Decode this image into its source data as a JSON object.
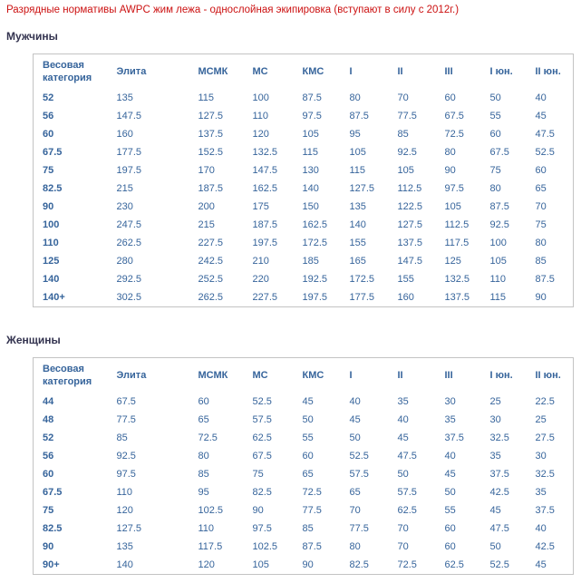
{
  "page_title": "Разрядные нормативы AWPC жим лежа - однослойная экипировка (вступают в силу с 2012г.)",
  "sections": [
    {
      "heading": "Мужчины",
      "table": {
        "header": [
          "Весовая категория",
          "Элита",
          "МСМК",
          "МС",
          "КМС",
          "I",
          "II",
          "III",
          "I юн.",
          "II юн."
        ],
        "rows": [
          [
            "52",
            "135",
            "115",
            "100",
            "87.5",
            "80",
            "70",
            "60",
            "50",
            "40"
          ],
          [
            "56",
            "147.5",
            "127.5",
            "110",
            "97.5",
            "87.5",
            "77.5",
            "67.5",
            "55",
            "45"
          ],
          [
            "60",
            "160",
            "137.5",
            "120",
            "105",
            "95",
            "85",
            "72.5",
            "60",
            "47.5"
          ],
          [
            "67.5",
            "177.5",
            "152.5",
            "132.5",
            "115",
            "105",
            "92.5",
            "80",
            "67.5",
            "52.5"
          ],
          [
            "75",
            "197.5",
            "170",
            "147.5",
            "130",
            "115",
            "105",
            "90",
            "75",
            "60"
          ],
          [
            "82.5",
            "215",
            "187.5",
            "162.5",
            "140",
            "127.5",
            "112.5",
            "97.5",
            "80",
            "65"
          ],
          [
            "90",
            "230",
            "200",
            "175",
            "150",
            "135",
            "122.5",
            "105",
            "87.5",
            "70"
          ],
          [
            "100",
            "247.5",
            "215",
            "187.5",
            "162.5",
            "140",
            "127.5",
            "112.5",
            "92.5",
            "75"
          ],
          [
            "110",
            "262.5",
            "227.5",
            "197.5",
            "172.5",
            "155",
            "137.5",
            "117.5",
            "100",
            "80"
          ],
          [
            "125",
            "280",
            "242.5",
            "210",
            "185",
            "165",
            "147.5",
            "125",
            "105",
            "85"
          ],
          [
            "140",
            "292.5",
            "252.5",
            "220",
            "192.5",
            "172.5",
            "155",
            "132.5",
            "110",
            "87.5"
          ],
          [
            "140+",
            "302.5",
            "262.5",
            "227.5",
            "197.5",
            "177.5",
            "160",
            "137.5",
            "115",
            "90"
          ]
        ]
      }
    },
    {
      "heading": "Женщины",
      "table": {
        "header": [
          "Весовая категория",
          "Элита",
          "МСМК",
          "МС",
          "КМС",
          "I",
          "II",
          "III",
          "I юн.",
          "II юн."
        ],
        "rows": [
          [
            "44",
            "67.5",
            "60",
            "52.5",
            "45",
            "40",
            "35",
            "30",
            "25",
            "22.5"
          ],
          [
            "48",
            "77.5",
            "65",
            "57.5",
            "50",
            "45",
            "40",
            "35",
            "30",
            "25"
          ],
          [
            "52",
            "85",
            "72.5",
            "62.5",
            "55",
            "50",
            "45",
            "37.5",
            "32.5",
            "27.5"
          ],
          [
            "56",
            "92.5",
            "80",
            "67.5",
            "60",
            "52.5",
            "47.5",
            "40",
            "35",
            "30"
          ],
          [
            "60",
            "97.5",
            "85",
            "75",
            "65",
            "57.5",
            "50",
            "45",
            "37.5",
            "32.5"
          ],
          [
            "67.5",
            "110",
            "95",
            "82.5",
            "72.5",
            "65",
            "57.5",
            "50",
            "42.5",
            "35"
          ],
          [
            "75",
            "120",
            "102.5",
            "90",
            "77.5",
            "70",
            "62.5",
            "55",
            "45",
            "37.5"
          ],
          [
            "82.5",
            "127.5",
            "110",
            "97.5",
            "85",
            "77.5",
            "70",
            "60",
            "47.5",
            "40"
          ],
          [
            "90",
            "135",
            "117.5",
            "102.5",
            "87.5",
            "80",
            "70",
            "60",
            "50",
            "42.5"
          ],
          [
            "90+",
            "140",
            "120",
            "105",
            "90",
            "82.5",
            "72.5",
            "62.5",
            "52.5",
            "45"
          ]
        ]
      }
    }
  ]
}
